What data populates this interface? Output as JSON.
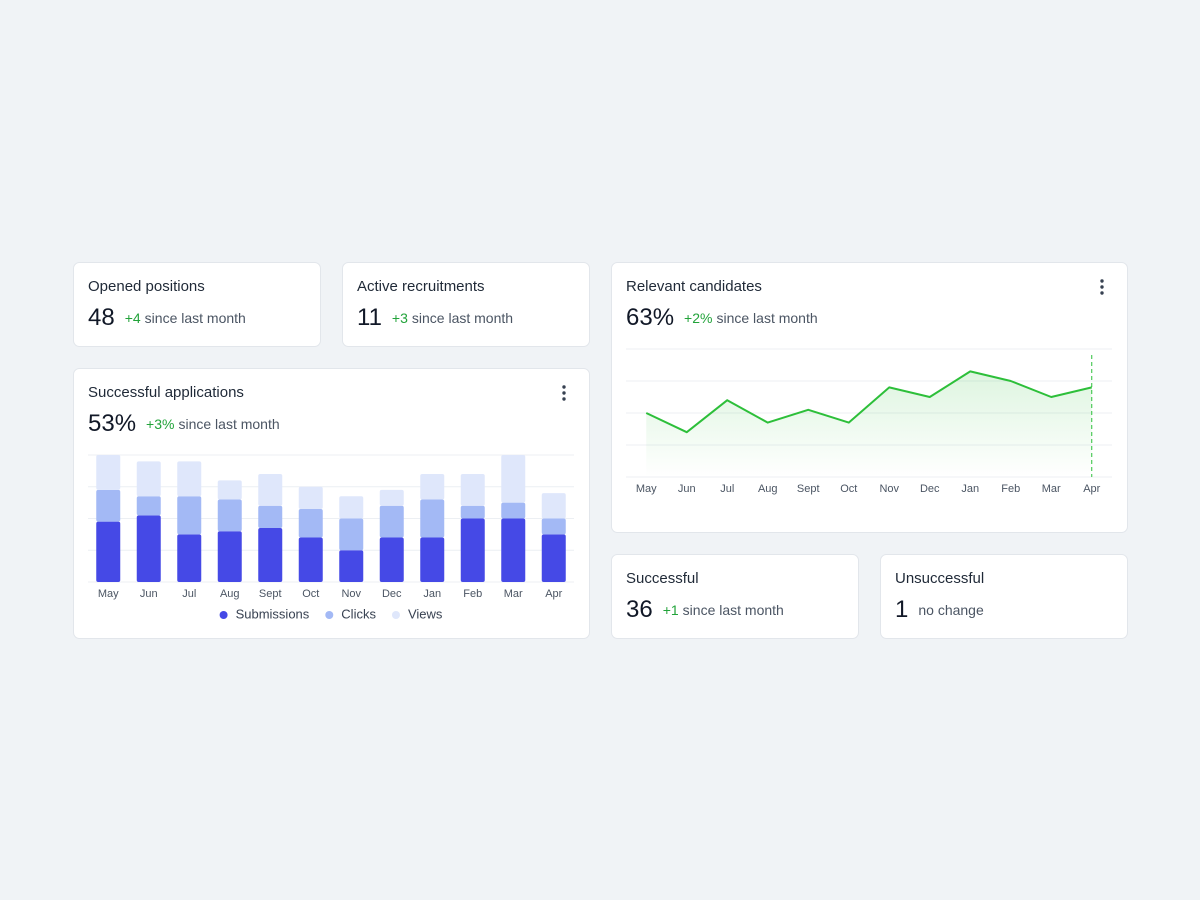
{
  "stats": [
    {
      "title": "Opened positions",
      "value": "48",
      "delta": "+4",
      "note": "since last month"
    },
    {
      "title": "Active recruitments",
      "value": "11",
      "delta": "+3",
      "note": "since last month"
    },
    {
      "title": "Successful",
      "value": "36",
      "delta": "+1",
      "note": "since last month"
    },
    {
      "title": "Unsuccessful",
      "value": "1",
      "note": "no change"
    }
  ],
  "chart_data": [
    {
      "type": "bar",
      "title": "Successful applications",
      "value": "53%",
      "delta": "+3%",
      "note": "since last month",
      "stacked": true,
      "grid": true,
      "ylim": [
        0,
        4
      ],
      "yticks": [
        0,
        1,
        2,
        3,
        4
      ],
      "categories": [
        "May",
        "Jun",
        "Jul",
        "Aug",
        "Sept",
        "Oct",
        "Nov",
        "Dec",
        "Jan",
        "Feb",
        "Mar",
        "Apr"
      ],
      "series": [
        {
          "name": "Submissions",
          "color": "#4549e6",
          "values": [
            1.9,
            2.1,
            1.5,
            1.6,
            1.7,
            1.4,
            1.0,
            1.4,
            1.4,
            2.0,
            2.0,
            1.5
          ]
        },
        {
          "name": "Clicks",
          "color": "#a3b9f5",
          "values": [
            1.0,
            0.6,
            1.2,
            1.0,
            0.7,
            0.9,
            1.0,
            1.0,
            1.2,
            0.4,
            0.5,
            0.5
          ]
        },
        {
          "name": "Views",
          "color": "#dfe7fb",
          "values": [
            1.1,
            1.1,
            1.1,
            0.6,
            1.0,
            0.7,
            0.7,
            0.5,
            0.8,
            1.0,
            1.5,
            0.8
          ]
        }
      ]
    },
    {
      "type": "line",
      "title": "Relevant candidates",
      "value": "63%",
      "delta": "+2%",
      "note": "since last month",
      "grid": true,
      "ylim": [
        0,
        4
      ],
      "yticks": [
        0,
        1,
        2,
        3,
        4
      ],
      "color": "#2dbf3a",
      "categories": [
        "May",
        "Jun",
        "Jul",
        "Aug",
        "Sept",
        "Oct",
        "Nov",
        "Dec",
        "Jan",
        "Feb",
        "Mar",
        "Apr"
      ],
      "values": [
        2.0,
        1.4,
        2.4,
        1.7,
        2.1,
        1.7,
        2.8,
        2.5,
        3.3,
        3.0,
        2.5,
        2.8
      ]
    }
  ]
}
